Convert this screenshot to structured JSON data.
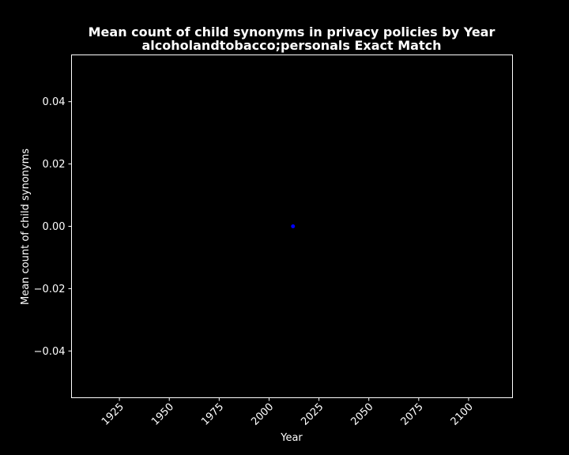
{
  "chart_data": {
    "type": "scatter",
    "title": "Mean count of child synonyms in privacy policies by Year",
    "subtitle": "alcoholandtobacco;personals Exact Match",
    "xlabel": "Year",
    "ylabel": "Mean count of child synonyms",
    "xlim": [
      1901,
      2122
    ],
    "ylim": [
      -0.055,
      0.055
    ],
    "x_ticks": [
      1925,
      1950,
      1975,
      2000,
      2025,
      2050,
      2075,
      2100
    ],
    "y_ticks": [
      0.04,
      0.02,
      0.0,
      -0.02,
      -0.04
    ],
    "x_tick_labels": [
      "1925",
      "1950",
      "1975",
      "2000",
      "2025",
      "2050",
      "2075",
      "2100"
    ],
    "y_tick_labels": [
      "0.04",
      "0.02",
      "0.00",
      "−0.02",
      "−0.04"
    ],
    "grid": false,
    "series": [
      {
        "x": [
          2012
        ],
        "y": [
          0.0
        ],
        "color": "#0000ff"
      }
    ],
    "colors": {
      "background": "#000000",
      "axes": "#ffffff",
      "text": "#ffffff"
    }
  }
}
